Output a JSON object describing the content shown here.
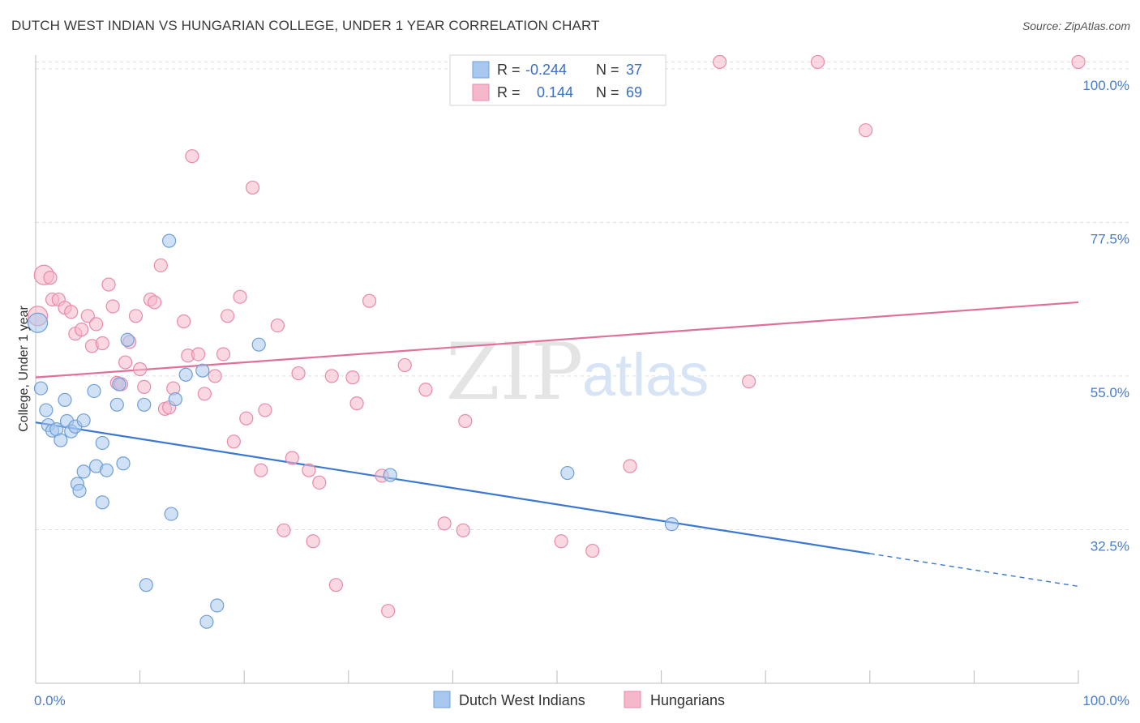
{
  "title": "DUTCH WEST INDIAN VS HUNGARIAN COLLEGE, UNDER 1 YEAR CORRELATION CHART",
  "source": "Source: ZipAtlas.com",
  "colors": {
    "blue_fill": "#a9c8ef",
    "blue_stroke": "#6f9fd8",
    "blue_line": "#3b78d0",
    "pink_fill": "#f5b8cb",
    "pink_stroke": "#e88aa9",
    "pink_line": "#e0709a",
    "grid": "#dddddd",
    "label": "#4a7cc9"
  },
  "legend": {
    "rows": [
      {
        "r_label": "R = ",
        "r_value": "-0.244",
        "n_label": "N = ",
        "n_value": "37"
      },
      {
        "r_label": "R = ",
        "r_value": "0.144",
        "n_label": "N = ",
        "n_value": "69"
      }
    ]
  },
  "watermark": {
    "zip": "ZIP",
    "atlas": "atlas"
  },
  "chart_data": {
    "type": "scatter",
    "title": "DUTCH WEST INDIAN VS HUNGARIAN COLLEGE, UNDER 1 YEAR CORRELATION CHART",
    "xlabel": "",
    "ylabel": "College, Under 1 year",
    "xlim": [
      0,
      100
    ],
    "ylim": [
      10,
      102
    ],
    "x_tick_labels": [
      "0.0%",
      "100.0%"
    ],
    "y_ticks": [
      32.5,
      55.0,
      77.5,
      100.0
    ],
    "y_tick_labels": [
      "32.5%",
      "55.0%",
      "77.5%",
      "100.0%"
    ],
    "legend_position": "bottom-center",
    "series": [
      {
        "name": "Dutch West Indians",
        "color": "#a9c8ef",
        "r": -0.244,
        "n": 37,
        "trend": {
          "x0": 0,
          "y0": 48.2,
          "x1": 80,
          "y1": 29.0,
          "dash_to_x": 100,
          "dash_to_y": 24.2
        },
        "points": [
          {
            "x": 0.2,
            "y": 62.8
          },
          {
            "x": 0.5,
            "y": 53.2
          },
          {
            "x": 1.0,
            "y": 50.0
          },
          {
            "x": 1.2,
            "y": 47.8
          },
          {
            "x": 1.6,
            "y": 47.0
          },
          {
            "x": 2.0,
            "y": 47.2
          },
          {
            "x": 2.4,
            "y": 45.6
          },
          {
            "x": 2.8,
            "y": 51.5
          },
          {
            "x": 3.0,
            "y": 48.4
          },
          {
            "x": 3.4,
            "y": 46.9
          },
          {
            "x": 3.8,
            "y": 47.6
          },
          {
            "x": 4.6,
            "y": 48.5
          },
          {
            "x": 4.0,
            "y": 39.2
          },
          {
            "x": 4.2,
            "y": 38.2
          },
          {
            "x": 4.6,
            "y": 41.0
          },
          {
            "x": 5.6,
            "y": 52.8
          },
          {
            "x": 5.8,
            "y": 41.8
          },
          {
            "x": 6.4,
            "y": 36.5
          },
          {
            "x": 6.4,
            "y": 45.2
          },
          {
            "x": 6.8,
            "y": 41.2
          },
          {
            "x": 7.8,
            "y": 50.8
          },
          {
            "x": 8.0,
            "y": 53.8
          },
          {
            "x": 8.4,
            "y": 42.2
          },
          {
            "x": 8.8,
            "y": 60.3
          },
          {
            "x": 10.4,
            "y": 50.8
          },
          {
            "x": 10.6,
            "y": 24.4
          },
          {
            "x": 12.8,
            "y": 74.8
          },
          {
            "x": 13.0,
            "y": 34.8
          },
          {
            "x": 13.4,
            "y": 51.6
          },
          {
            "x": 14.4,
            "y": 55.2
          },
          {
            "x": 16.0,
            "y": 55.8
          },
          {
            "x": 16.4,
            "y": 19.0
          },
          {
            "x": 17.4,
            "y": 21.4
          },
          {
            "x": 21.4,
            "y": 59.6
          },
          {
            "x": 34.0,
            "y": 40.5
          },
          {
            "x": 51.0,
            "y": 40.8
          },
          {
            "x": 61.0,
            "y": 33.3
          }
        ]
      },
      {
        "name": "Hungarians",
        "color": "#f5b8cb",
        "r": 0.144,
        "n": 69,
        "trend": {
          "x0": 0,
          "y0": 54.8,
          "x1": 100,
          "y1": 65.8
        },
        "points": [
          {
            "x": 0.2,
            "y": 63.8
          },
          {
            "x": 0.8,
            "y": 69.8
          },
          {
            "x": 1.4,
            "y": 69.4
          },
          {
            "x": 1.6,
            "y": 66.2
          },
          {
            "x": 2.2,
            "y": 66.2
          },
          {
            "x": 2.8,
            "y": 65.0
          },
          {
            "x": 3.4,
            "y": 64.4
          },
          {
            "x": 3.8,
            "y": 61.2
          },
          {
            "x": 4.4,
            "y": 61.8
          },
          {
            "x": 5.0,
            "y": 63.8
          },
          {
            "x": 5.4,
            "y": 59.4
          },
          {
            "x": 5.8,
            "y": 62.6
          },
          {
            "x": 6.4,
            "y": 59.8
          },
          {
            "x": 7.0,
            "y": 68.4
          },
          {
            "x": 7.4,
            "y": 65.2
          },
          {
            "x": 7.8,
            "y": 54.0
          },
          {
            "x": 8.2,
            "y": 53.8
          },
          {
            "x": 8.6,
            "y": 57.0
          },
          {
            "x": 9.0,
            "y": 60.0
          },
          {
            "x": 9.6,
            "y": 63.8
          },
          {
            "x": 10.0,
            "y": 56.0
          },
          {
            "x": 10.4,
            "y": 53.4
          },
          {
            "x": 11.0,
            "y": 66.2
          },
          {
            "x": 11.4,
            "y": 65.8
          },
          {
            "x": 12.0,
            "y": 71.2
          },
          {
            "x": 12.4,
            "y": 50.2
          },
          {
            "x": 12.8,
            "y": 50.4
          },
          {
            "x": 13.2,
            "y": 53.2
          },
          {
            "x": 14.2,
            "y": 63.0
          },
          {
            "x": 14.6,
            "y": 58.0
          },
          {
            "x": 15.0,
            "y": 87.2
          },
          {
            "x": 15.6,
            "y": 58.2
          },
          {
            "x": 16.2,
            "y": 52.4
          },
          {
            "x": 17.2,
            "y": 55.0
          },
          {
            "x": 18.0,
            "y": 58.2
          },
          {
            "x": 18.4,
            "y": 63.8
          },
          {
            "x": 19.0,
            "y": 45.4
          },
          {
            "x": 19.6,
            "y": 66.6
          },
          {
            "x": 20.2,
            "y": 48.8
          },
          {
            "x": 20.8,
            "y": 82.6
          },
          {
            "x": 21.6,
            "y": 41.2
          },
          {
            "x": 22.0,
            "y": 50.0
          },
          {
            "x": 23.2,
            "y": 62.4
          },
          {
            "x": 23.8,
            "y": 32.4
          },
          {
            "x": 24.6,
            "y": 43.0
          },
          {
            "x": 25.2,
            "y": 55.4
          },
          {
            "x": 26.2,
            "y": 41.2
          },
          {
            "x": 26.6,
            "y": 30.8
          },
          {
            "x": 27.2,
            "y": 39.4
          },
          {
            "x": 28.4,
            "y": 55.0
          },
          {
            "x": 28.8,
            "y": 24.4
          },
          {
            "x": 30.4,
            "y": 54.8
          },
          {
            "x": 30.8,
            "y": 51.0
          },
          {
            "x": 32.0,
            "y": 66.0
          },
          {
            "x": 33.2,
            "y": 40.4
          },
          {
            "x": 33.8,
            "y": 20.6
          },
          {
            "x": 35.4,
            "y": 56.6
          },
          {
            "x": 37.4,
            "y": 53.0
          },
          {
            "x": 39.2,
            "y": 33.4
          },
          {
            "x": 41.0,
            "y": 32.4
          },
          {
            "x": 41.2,
            "y": 48.4
          },
          {
            "x": 50.4,
            "y": 30.8
          },
          {
            "x": 53.4,
            "y": 29.4
          },
          {
            "x": 57.0,
            "y": 41.8
          },
          {
            "x": 65.6,
            "y": 101.0
          },
          {
            "x": 68.4,
            "y": 54.2
          },
          {
            "x": 75.0,
            "y": 101.0
          },
          {
            "x": 79.6,
            "y": 91.0
          },
          {
            "x": 100.0,
            "y": 101.0
          }
        ]
      }
    ]
  }
}
